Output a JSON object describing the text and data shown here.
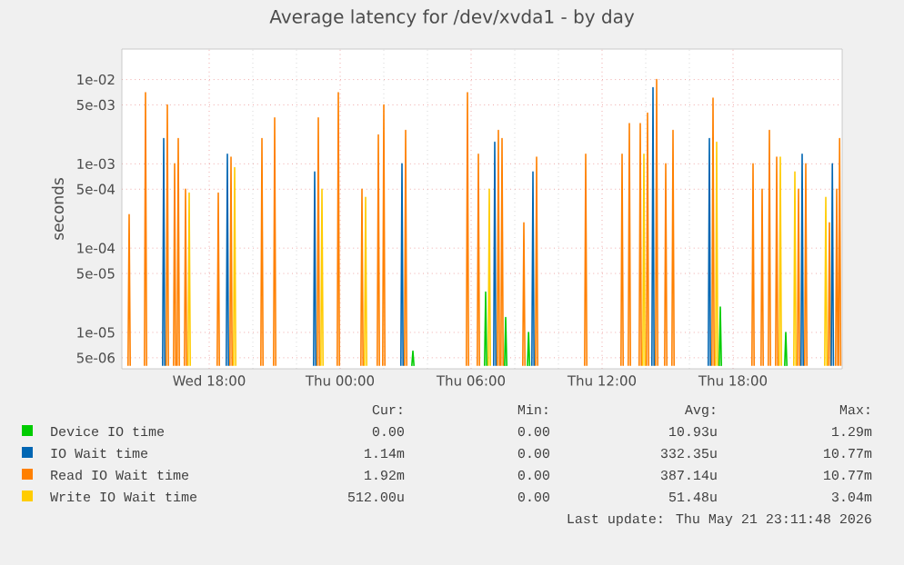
{
  "chart_data": {
    "type": "line",
    "title": "Average latency for /dev/xvda1 - by day",
    "ylabel": "seconds",
    "log": "y",
    "grid": true,
    "legend": "bottom",
    "xlim": [
      "2026-05-20T14:00",
      "2026-05-21T23:00"
    ],
    "ylim": [
      3.7e-06,
      0.023
    ],
    "xticks": [
      {
        "value": "2026-05-20T18:00",
        "label": "Wed 18:00"
      },
      {
        "value": "2026-05-21T00:00",
        "label": "Thu 00:00"
      },
      {
        "value": "2026-05-21T06:00",
        "label": "Thu 06:00"
      },
      {
        "value": "2026-05-21T12:00",
        "label": "Thu 12:00"
      },
      {
        "value": "2026-05-21T18:00",
        "label": "Thu 18:00"
      }
    ],
    "yticks": [
      {
        "value": 5e-06,
        "label": "5e-06"
      },
      {
        "value": 1e-05,
        "label": "1e-05"
      },
      {
        "value": 5e-05,
        "label": "5e-05"
      },
      {
        "value": 0.0001,
        "label": "1e-04"
      },
      {
        "value": 0.0005,
        "label": "5e-04"
      },
      {
        "value": 0.001,
        "label": "1e-03"
      },
      {
        "value": 0.005,
        "label": "5e-03"
      },
      {
        "value": 0.01,
        "label": "1e-02"
      }
    ],
    "annotations": [
      "Cur:",
      "Min:",
      "Avg:",
      "Max:",
      "0.00",
      "0.00",
      "10.93u",
      "1.29m",
      "1.14m",
      "0.00",
      "332.35u",
      "10.77m",
      "1.92m",
      "0.00",
      "387.14u",
      "10.77m",
      "512.00u",
      "0.00",
      "51.48u",
      "3.04m",
      "Last update: Thu May 21 23:11:48 2026"
    ],
    "series": [
      {
        "name": "Device IO time",
        "color": "#00cc00",
        "x": [
          "2026-05-21T03:17",
          "2026-05-21T03:20",
          "2026-05-21T03:23",
          "2026-05-21T03:24",
          "2026-05-21T06:37",
          "2026-05-21T06:40",
          "2026-05-21T06:43",
          "2026-05-21T06:44",
          "2026-05-21T07:32",
          "2026-05-21T07:35",
          "2026-05-21T07:38",
          "2026-05-21T07:39",
          "2026-05-21T08:35",
          "2026-05-21T08:38",
          "2026-05-21T08:41",
          "2026-05-21T08:42",
          "2026-05-21T17:22",
          "2026-05-21T17:25",
          "2026-05-21T17:28",
          "2026-05-21T17:29",
          "2026-05-21T20:22",
          "2026-05-21T20:25",
          "2026-05-21T20:28"
        ],
        "values": [
          4e-06,
          6e-06,
          4e-06,
          null,
          4e-06,
          3e-05,
          4e-06,
          null,
          4e-06,
          1.5e-05,
          4e-06,
          null,
          4e-06,
          1e-05,
          4e-06,
          null,
          4e-06,
          2e-05,
          4e-06,
          null,
          4e-06,
          1e-05,
          4e-06
        ]
      },
      {
        "name": "IO Wait time",
        "color": "#0066b3",
        "x": [
          "2026-05-20T15:52",
          "2026-05-20T15:55",
          "2026-05-20T15:58",
          "2026-05-20T15:59",
          "2026-05-20T18:47",
          "2026-05-20T18:50",
          "2026-05-20T18:53",
          "2026-05-20T18:54",
          "2026-05-20T22:47",
          "2026-05-20T22:50",
          "2026-05-20T22:53",
          "2026-05-20T22:54",
          "2026-05-21T02:47",
          "2026-05-21T02:50",
          "2026-05-21T02:53",
          "2026-05-21T02:54",
          "2026-05-21T07:02",
          "2026-05-21T07:05",
          "2026-05-21T07:08",
          "2026-05-21T07:09",
          "2026-05-21T08:47",
          "2026-05-21T08:50",
          "2026-05-21T08:53",
          "2026-05-21T08:54",
          "2026-05-21T14:17",
          "2026-05-21T14:20",
          "2026-05-21T14:23",
          "2026-05-21T14:24",
          "2026-05-21T16:52",
          "2026-05-21T16:55",
          "2026-05-21T16:58",
          "2026-05-21T16:59",
          "2026-05-21T21:07",
          "2026-05-21T21:10",
          "2026-05-21T21:13",
          "2026-05-21T21:14",
          "2026-05-21T22:30",
          "2026-05-21T22:33",
          "2026-05-21T22:36"
        ],
        "values": [
          4e-06,
          0.002,
          4e-06,
          null,
          4e-06,
          0.0013,
          4e-06,
          null,
          4e-06,
          0.0008,
          4e-06,
          null,
          4e-06,
          0.001,
          4e-06,
          null,
          4e-06,
          0.0018,
          4e-06,
          null,
          4e-06,
          0.0008,
          4e-06,
          null,
          4e-06,
          0.008,
          4e-06,
          null,
          4e-06,
          0.002,
          4e-06,
          null,
          4e-06,
          0.0013,
          4e-06,
          null,
          4e-06,
          0.001,
          4e-06
        ]
      },
      {
        "name": "Read IO Wait time",
        "color": "#ff8000",
        "x": [
          "2026-05-20T14:17",
          "2026-05-20T14:20",
          "2026-05-20T14:23",
          "2026-05-20T14:24",
          "2026-05-20T15:02",
          "2026-05-20T15:05",
          "2026-05-20T15:08",
          "2026-05-20T15:09",
          "2026-05-20T16:02",
          "2026-05-20T16:05",
          "2026-05-20T16:08",
          "2026-05-20T16:09",
          "2026-05-20T16:22",
          "2026-05-20T16:25",
          "2026-05-20T16:28",
          "2026-05-20T16:29",
          "2026-05-20T16:32",
          "2026-05-20T16:35",
          "2026-05-20T16:38",
          "2026-05-20T16:39",
          "2026-05-20T16:52",
          "2026-05-20T16:55",
          "2026-05-20T16:58",
          "2026-05-20T16:59",
          "2026-05-20T18:22",
          "2026-05-20T18:25",
          "2026-05-20T18:28",
          "2026-05-20T18:29",
          "2026-05-20T18:57",
          "2026-05-20T19:00",
          "2026-05-20T19:03",
          "2026-05-20T19:04",
          "2026-05-20T20:22",
          "2026-05-20T20:25",
          "2026-05-20T20:28",
          "2026-05-20T20:29",
          "2026-05-20T20:57",
          "2026-05-20T21:00",
          "2026-05-20T21:03",
          "2026-05-20T21:04",
          "2026-05-20T22:57",
          "2026-05-20T23:00",
          "2026-05-20T23:03",
          "2026-05-20T23:04",
          "2026-05-20T23:52",
          "2026-05-20T23:55",
          "2026-05-20T23:58",
          "2026-05-20T23:59",
          "2026-05-21T00:57",
          "2026-05-21T01:00",
          "2026-05-21T01:03",
          "2026-05-21T01:04",
          "2026-05-21T01:42",
          "2026-05-21T01:45",
          "2026-05-21T01:48",
          "2026-05-21T01:49",
          "2026-05-21T01:57",
          "2026-05-21T02:00",
          "2026-05-21T02:03",
          "2026-05-21T02:04",
          "2026-05-21T02:57",
          "2026-05-21T03:00",
          "2026-05-21T03:03",
          "2026-05-21T03:04",
          "2026-05-21T05:47",
          "2026-05-21T05:50",
          "2026-05-21T05:53",
          "2026-05-21T05:54",
          "2026-05-21T06:17",
          "2026-05-21T06:20",
          "2026-05-21T06:23",
          "2026-05-21T06:24",
          "2026-05-21T07:12",
          "2026-05-21T07:15",
          "2026-05-21T07:18",
          "2026-05-21T07:19",
          "2026-05-21T07:22",
          "2026-05-21T07:25",
          "2026-05-21T07:28",
          "2026-05-21T07:29",
          "2026-05-21T08:22",
          "2026-05-21T08:25",
          "2026-05-21T08:28",
          "2026-05-21T08:29",
          "2026-05-21T08:57",
          "2026-05-21T09:00",
          "2026-05-21T09:03",
          "2026-05-21T09:04",
          "2026-05-21T11:12",
          "2026-05-21T11:15",
          "2026-05-21T11:18",
          "2026-05-21T11:19",
          "2026-05-21T12:52",
          "2026-05-21T12:55",
          "2026-05-21T12:58",
          "2026-05-21T12:59",
          "2026-05-21T13:12",
          "2026-05-21T13:15",
          "2026-05-21T13:18",
          "2026-05-21T13:19",
          "2026-05-21T13:42",
          "2026-05-21T13:45",
          "2026-05-21T13:48",
          "2026-05-21T13:49",
          "2026-05-21T14:02",
          "2026-05-21T14:05",
          "2026-05-21T14:08",
          "2026-05-21T14:09",
          "2026-05-21T14:27",
          "2026-05-21T14:30",
          "2026-05-21T14:33",
          "2026-05-21T14:34",
          "2026-05-21T14:52",
          "2026-05-21T14:55",
          "2026-05-21T14:58",
          "2026-05-21T14:59",
          "2026-05-21T15:12",
          "2026-05-21T15:15",
          "2026-05-21T15:18",
          "2026-05-21T15:19",
          "2026-05-21T17:02",
          "2026-05-21T17:05",
          "2026-05-21T17:08",
          "2026-05-21T17:09",
          "2026-05-21T18:52",
          "2026-05-21T18:55",
          "2026-05-21T18:58",
          "2026-05-21T18:59",
          "2026-05-21T19:17",
          "2026-05-21T19:20",
          "2026-05-21T19:23",
          "2026-05-21T19:24",
          "2026-05-21T19:37",
          "2026-05-21T19:40",
          "2026-05-21T19:43",
          "2026-05-21T19:44",
          "2026-05-21T19:57",
          "2026-05-21T20:00",
          "2026-05-21T20:03",
          "2026-05-21T20:04",
          "2026-05-21T20:57",
          "2026-05-21T21:00",
          "2026-05-21T21:03",
          "2026-05-21T21:04",
          "2026-05-21T21:17",
          "2026-05-21T21:20",
          "2026-05-21T21:23",
          "2026-05-21T21:24",
          "2026-05-21T22:22",
          "2026-05-21T22:25",
          "2026-05-21T22:28",
          "2026-05-21T22:29",
          "2026-05-21T22:42",
          "2026-05-21T22:45",
          "2026-05-21T22:48",
          "2026-05-21T22:49",
          "2026-05-21T22:50",
          "2026-05-21T22:53",
          "2026-05-21T22:56"
        ],
        "values": [
          4e-06,
          0.00025,
          4e-06,
          null,
          4e-06,
          0.007,
          4e-06,
          null,
          4e-06,
          0.005,
          4e-06,
          null,
          4e-06,
          0.001,
          4e-06,
          null,
          4e-06,
          0.002,
          4e-06,
          null,
          4e-06,
          0.0005,
          4e-06,
          null,
          4e-06,
          0.00045,
          4e-06,
          null,
          4e-06,
          0.0012,
          4e-06,
          null,
          4e-06,
          0.002,
          4e-06,
          null,
          4e-06,
          0.0035,
          4e-06,
          null,
          4e-06,
          0.0035,
          4e-06,
          null,
          4e-06,
          0.007,
          4e-06,
          null,
          4e-06,
          0.0005,
          4e-06,
          null,
          4e-06,
          0.0022,
          4e-06,
          null,
          4e-06,
          0.005,
          4e-06,
          null,
          4e-06,
          0.0025,
          4e-06,
          null,
          4e-06,
          0.007,
          4e-06,
          null,
          4e-06,
          0.0013,
          4e-06,
          null,
          4e-06,
          0.0025,
          4e-06,
          null,
          4e-06,
          0.002,
          4e-06,
          null,
          4e-06,
          0.0002,
          4e-06,
          null,
          4e-06,
          0.0012,
          4e-06,
          null,
          4e-06,
          0.0013,
          4e-06,
          null,
          4e-06,
          0.0013,
          4e-06,
          null,
          4e-06,
          0.003,
          4e-06,
          null,
          4e-06,
          0.003,
          4e-06,
          null,
          4e-06,
          0.004,
          4e-06,
          null,
          4e-06,
          0.01,
          4e-06,
          null,
          4e-06,
          0.001,
          4e-06,
          null,
          4e-06,
          0.0025,
          4e-06,
          null,
          4e-06,
          0.006,
          4e-06,
          null,
          4e-06,
          0.001,
          4e-06,
          null,
          4e-06,
          0.0005,
          4e-06,
          null,
          4e-06,
          0.0025,
          4e-06,
          null,
          4e-06,
          0.0012,
          4e-06,
          null,
          4e-06,
          0.0005,
          4e-06,
          null,
          4e-06,
          0.001,
          4e-06,
          null,
          4e-06,
          0.0002,
          4e-06,
          null,
          4e-06,
          0.0005,
          4e-06,
          null,
          4e-06,
          0.002,
          4e-06
        ]
      },
      {
        "name": "Write IO Wait time",
        "color": "#ffcc00",
        "x": [
          "2026-05-20T17:02",
          "2026-05-20T17:05",
          "2026-05-20T17:08",
          "2026-05-20T17:09",
          "2026-05-20T19:07",
          "2026-05-20T19:10",
          "2026-05-20T19:13",
          "2026-05-20T19:14",
          "2026-05-20T23:07",
          "2026-05-20T23:10",
          "2026-05-20T23:13",
          "2026-05-20T23:14",
          "2026-05-21T01:07",
          "2026-05-21T01:10",
          "2026-05-21T01:13",
          "2026-05-21T01:14",
          "2026-05-21T06:47",
          "2026-05-21T06:50",
          "2026-05-21T06:53",
          "2026-05-21T06:54",
          "2026-05-21T13:52",
          "2026-05-21T13:55",
          "2026-05-21T13:58",
          "2026-05-21T13:59",
          "2026-05-21T17:12",
          "2026-05-21T17:15",
          "2026-05-21T17:18",
          "2026-05-21T17:19",
          "2026-05-21T20:07",
          "2026-05-21T20:10",
          "2026-05-21T20:13",
          "2026-05-21T20:14",
          "2026-05-21T20:47",
          "2026-05-21T20:50",
          "2026-05-21T20:53",
          "2026-05-21T20:54",
          "2026-05-21T22:12",
          "2026-05-21T22:15",
          "2026-05-21T22:18"
        ],
        "values": [
          4e-06,
          0.00045,
          4e-06,
          null,
          4e-06,
          0.0009,
          4e-06,
          null,
          4e-06,
          0.0005,
          4e-06,
          null,
          4e-06,
          0.0004,
          4e-06,
          null,
          4e-06,
          0.0005,
          4e-06,
          null,
          4e-06,
          0.0013,
          4e-06,
          null,
          4e-06,
          0.0018,
          4e-06,
          null,
          4e-06,
          0.0012,
          4e-06,
          null,
          4e-06,
          0.0008,
          4e-06,
          null,
          4e-06,
          0.0004,
          4e-06
        ]
      }
    ]
  }
}
